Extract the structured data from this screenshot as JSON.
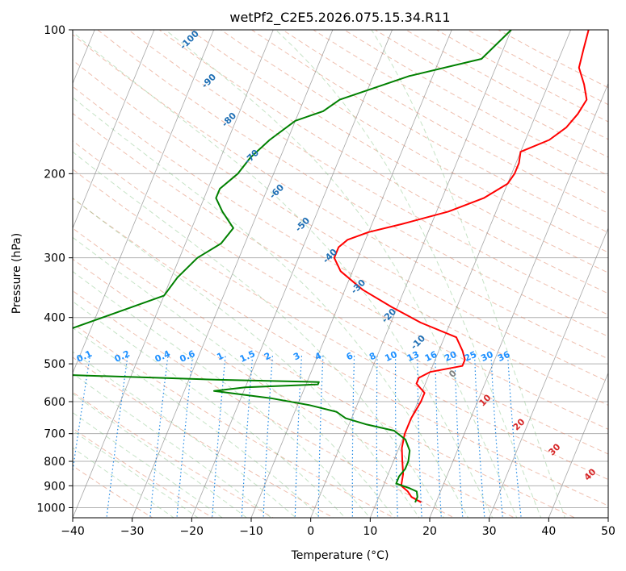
{
  "chart_data": {
    "type": "line",
    "title": "wetPf2_C2E5.2026.075.15.34.R11",
    "xlabel": "Temperature (°C)",
    "ylabel": "Pressure (hPa)",
    "xlim": [
      -40,
      50
    ],
    "ylim": [
      1050,
      100
    ],
    "y_scale": "log",
    "grid": true,
    "x_ticks": [
      -40,
      -30,
      -20,
      -10,
      0,
      10,
      20,
      30,
      40,
      50
    ],
    "y_ticks": [
      100,
      200,
      300,
      400,
      500,
      600,
      700,
      800,
      900,
      1000
    ],
    "series": [
      {
        "color": "#ff0000",
        "p": [
          975,
          950,
          925,
          900,
          850,
          800,
          750,
          700,
          650,
          600,
          575,
          550,
          535,
          520,
          505,
          490,
          470,
          440,
          410,
          380,
          350,
          320,
          300,
          285,
          275,
          265,
          255,
          240,
          225,
          210,
          200,
          190,
          180,
          170,
          160,
          150,
          140,
          130,
          120,
          110,
          100
        ],
        "t": [
          17.5,
          15.5,
          14.5,
          13,
          12.5,
          11.5,
          10.5,
          10,
          10,
          10.5,
          10.5,
          8.5,
          8.5,
          10,
          15,
          15,
          14,
          12,
          5,
          -1,
          -7,
          -12,
          -14,
          -14,
          -13,
          -10,
          -5,
          2,
          7,
          10,
          10.5,
          10.5,
          10,
          14,
          16,
          17,
          17.5,
          16,
          14,
          13.5,
          13
        ]
      },
      {
        "color": "#008000",
        "p": [
          975,
          950,
          925,
          910,
          890,
          860,
          830,
          800,
          760,
          720,
          690,
          670,
          650,
          630,
          610,
          590,
          580,
          570,
          560,
          552,
          546,
          540,
          535,
          528,
          522,
          515,
          360,
          330,
          300,
          280,
          260,
          240,
          225,
          215,
          200,
          185,
          170,
          155,
          148,
          140,
          125,
          115,
          100
        ],
        "t": [
          16.5,
          16.5,
          16,
          14.5,
          12,
          12,
          12.5,
          12.5,
          12,
          10.5,
          8,
          3,
          -1,
          -3,
          -8,
          -15,
          -20,
          -25,
          -20,
          -8,
          -8,
          -25,
          -35,
          -50,
          -60,
          -70,
          -40,
          -39,
          -37,
          -34,
          -33,
          -36,
          -38,
          -38,
          -36,
          -35,
          -33,
          -30,
          -26,
          -24,
          -14,
          -3,
          0
        ]
      }
    ],
    "dry_adiabat_labels": [
      "-100",
      "-90",
      "-80",
      "-70",
      "-60",
      "-50",
      "-40",
      "-30",
      "-20",
      "-10"
    ],
    "mixing_ratio_labels": [
      "0.1",
      "0.2",
      "0.4",
      "0.6",
      "1",
      "1.5",
      "2",
      "3",
      "4",
      "6",
      "8",
      "10",
      "13",
      "16",
      "20",
      "25",
      "30",
      "36"
    ],
    "moist_adiabat_labels": [
      "0",
      "10",
      "20",
      "30",
      "40"
    ],
    "colors": {
      "temperature": "#ff0000",
      "dewpoint": "#008000",
      "isotherm": "#808080",
      "dry_adiabat": "#e08060",
      "moist_adiabat": "#80c080",
      "mixing_ratio": "#1e88e5",
      "dry_label": "#1f6fb4",
      "mixing_label": "#1e90ff",
      "moist_label": "#d62728",
      "grid": "#b0b0b0"
    }
  }
}
